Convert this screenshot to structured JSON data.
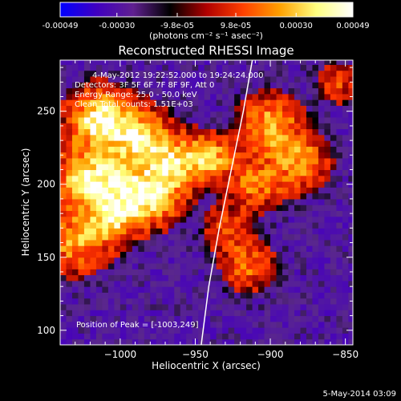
{
  "colorbar": {
    "ticks": [
      "-0.00049",
      "-0.00030",
      "-9.8e-05",
      "9.8e-05",
      "0.00030",
      "0.00049"
    ],
    "tick_values": [
      -0.00049,
      -0.0003,
      -9.8e-05,
      9.8e-05,
      0.0003,
      0.00049
    ],
    "range": [
      -0.00049,
      0.00049
    ],
    "units": "(photons cm⁻² s⁻¹ asec⁻²)"
  },
  "title": "Reconstructed RHESSI Image",
  "info_lines": [
    "4-May-2012 19:22:52.000 to 19:24:24.000",
    "Detectors: 3F 5F 6F 7F 8F 9F, Att 0",
    "Energy Range: 25.0 - 50.0 keV",
    "Clean   Total counts: 1.51E+03"
  ],
  "peak_text": "Position of Peak = [-1003,249]",
  "footer_date": "5-May-2014 03:09",
  "chart_data": {
    "type": "heatmap",
    "title": "Reconstructed RHESSI Image",
    "xlabel": "Heliocentric X (arcsec)",
    "ylabel": "Heliocentric Y (arcsec)",
    "xlim": [
      -1040,
      -845
    ],
    "ylim": [
      90,
      285
    ],
    "x_ticks": [
      -1000,
      -950,
      -900,
      -850
    ],
    "x_tick_labels": [
      "−1000",
      "−950",
      "−900",
      "−850"
    ],
    "y_ticks": [
      100,
      150,
      200,
      250
    ],
    "y_tick_labels": [
      "100",
      "150",
      "200",
      "250"
    ],
    "peak": [
      -1003,
      249
    ],
    "limb_curve": [
      [
        -946,
        90
      ],
      [
        -941,
        130
      ],
      [
        -934,
        170
      ],
      [
        -926,
        210
      ],
      [
        -918,
        250
      ],
      [
        -912,
        285
      ]
    ],
    "colormap_stops": [
      "#0000ff",
      "#4000c0",
      "#602090",
      "#000000",
      "#b00000",
      "#ff4000",
      "#ffa000",
      "#ffff80",
      "#ffffff"
    ],
    "bright_regions": [
      {
        "x": -1015,
        "y": 245,
        "sigma": 14,
        "amp": 1.0
      },
      {
        "x": -988,
        "y": 233,
        "sigma": 14,
        "amp": 0.85
      },
      {
        "x": -965,
        "y": 215,
        "sigma": 13,
        "amp": 0.8
      },
      {
        "x": -940,
        "y": 218,
        "sigma": 11,
        "amp": 0.75
      },
      {
        "x": -1025,
        "y": 205,
        "sigma": 14,
        "amp": 0.85
      },
      {
        "x": -1000,
        "y": 195,
        "sigma": 14,
        "amp": 0.9
      },
      {
        "x": -975,
        "y": 190,
        "sigma": 12,
        "amp": 0.75
      },
      {
        "x": -1030,
        "y": 160,
        "sigma": 14,
        "amp": 0.7
      },
      {
        "x": -1005,
        "y": 175,
        "sigma": 12,
        "amp": 0.6
      },
      {
        "x": -900,
        "y": 240,
        "sigma": 14,
        "amp": 0.75
      },
      {
        "x": -880,
        "y": 215,
        "sigma": 13,
        "amp": 0.65
      },
      {
        "x": -910,
        "y": 200,
        "sigma": 12,
        "amp": 0.6
      },
      {
        "x": -915,
        "y": 145,
        "sigma": 12,
        "amp": 0.55
      },
      {
        "x": -930,
        "y": 170,
        "sigma": 10,
        "amp": 0.45
      },
      {
        "x": -855,
        "y": 270,
        "sigma": 10,
        "amp": 0.4
      }
    ]
  }
}
